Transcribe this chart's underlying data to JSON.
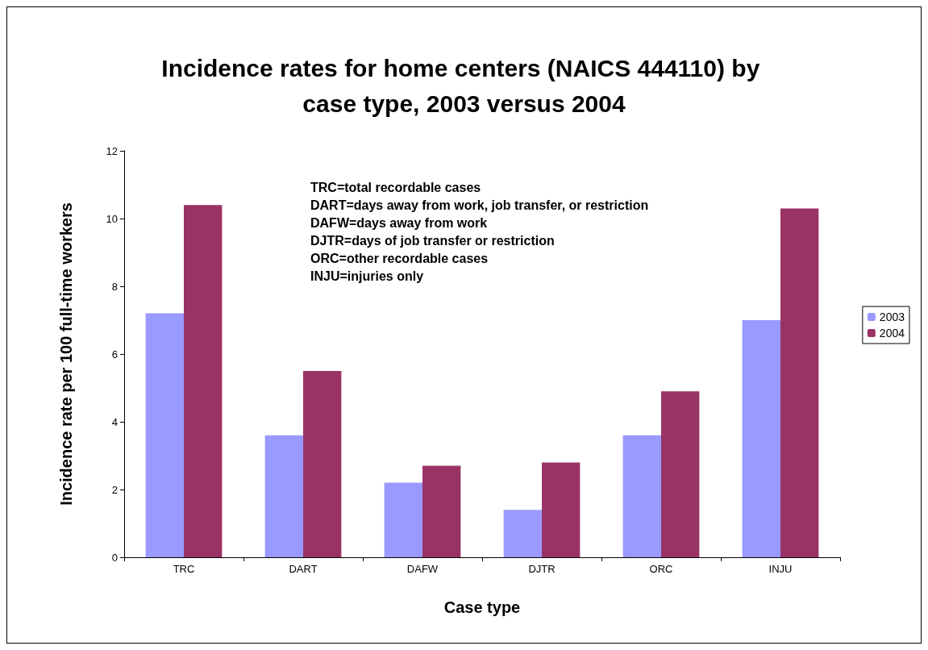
{
  "chart_data": {
    "type": "bar",
    "title": "Incidence rates for home centers (NAICS 444110) by case type, 2003 versus 2004",
    "xlabel": "Case type",
    "ylabel": "Incidence rate per 100 full-time workers",
    "categories": [
      "TRC",
      "DART",
      "DAFW",
      "DJTR",
      "ORC",
      "INJU"
    ],
    "series": [
      {
        "name": "2003",
        "color": "#9999ff",
        "values": [
          7.2,
          3.6,
          2.2,
          1.4,
          3.6,
          7.0
        ]
      },
      {
        "name": "2004",
        "color": "#993366",
        "values": [
          10.4,
          5.5,
          2.7,
          2.8,
          4.9,
          10.3
        ]
      }
    ],
    "ylim": [
      0,
      12
    ],
    "yticks": [
      0,
      2,
      4,
      6,
      8,
      10,
      12
    ],
    "grid": false,
    "legend": "right",
    "annotations": [
      "TRC=total recordable cases",
      "DART=days away from work, job transfer, or restriction",
      "DAFW=days away from work",
      "DJTR=days of job transfer or restriction",
      "ORC=other recordable cases",
      "INJU=injuries only"
    ]
  }
}
